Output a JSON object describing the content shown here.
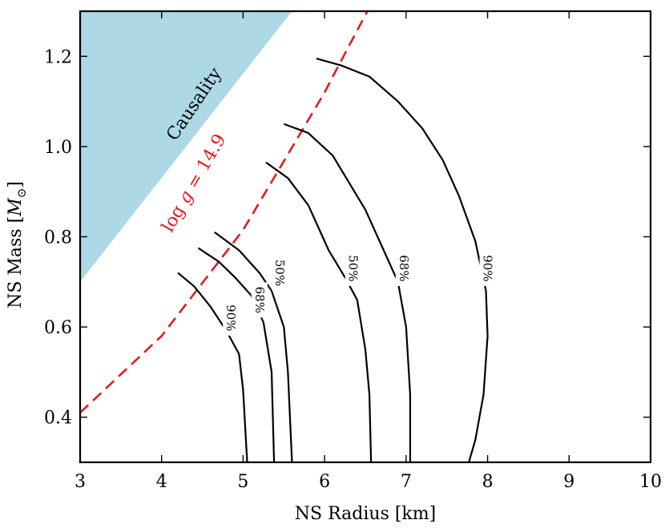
{
  "chart_data": {
    "type": "line",
    "xlabel": "NS Radius [km]",
    "ylabel": "NS Mass [M⊙]",
    "xlim": [
      3,
      10
    ],
    "ylim": [
      0.3,
      1.3
    ],
    "xticks": [
      "3",
      "4",
      "5",
      "6",
      "7",
      "8",
      "9",
      "10"
    ],
    "yticks": [
      "0.4",
      "0.6",
      "0.8",
      "1.0",
      "1.2"
    ],
    "grid": false,
    "colors": {
      "causality_fill": "#add8e6",
      "logg_line": "#e31a1c",
      "contour": "#000000"
    },
    "regions": [
      {
        "label": "Causality",
        "points": [
          [
            3.0,
            0.7
          ],
          [
            3.0,
            1.3
          ],
          [
            5.6,
            1.3
          ]
        ]
      }
    ],
    "lines": [
      {
        "label": "log g = 14.9",
        "style": "dashed",
        "points": [
          [
            3.0,
            0.41
          ],
          [
            4.0,
            0.58
          ],
          [
            5.0,
            0.815
          ],
          [
            6.0,
            1.12
          ],
          [
            6.1,
            1.155
          ],
          [
            6.7,
            1.36
          ]
        ]
      }
    ],
    "series": [
      {
        "label": "90%",
        "label_at": [
          4.85,
          0.62
        ],
        "points": [
          [
            4.2,
            0.72
          ],
          [
            4.4,
            0.69
          ],
          [
            4.6,
            0.645
          ],
          [
            4.8,
            0.59
          ],
          [
            4.95,
            0.54
          ],
          [
            5.0,
            0.46
          ],
          [
            5.05,
            0.3
          ]
        ]
      },
      {
        "label": "68%",
        "label_at": [
          5.2,
          0.66
        ],
        "points": [
          [
            4.45,
            0.775
          ],
          [
            4.7,
            0.745
          ],
          [
            4.9,
            0.71
          ],
          [
            5.1,
            0.67
          ],
          [
            5.25,
            0.61
          ],
          [
            5.35,
            0.5
          ],
          [
            5.38,
            0.3
          ]
        ]
      },
      {
        "label": "50%",
        "label_at": [
          5.45,
          0.72
        ],
        "points": [
          [
            4.65,
            0.81
          ],
          [
            4.95,
            0.77
          ],
          [
            5.2,
            0.72
          ],
          [
            5.35,
            0.68
          ],
          [
            5.5,
            0.6
          ],
          [
            5.55,
            0.5
          ],
          [
            5.6,
            0.3
          ]
        ]
      },
      {
        "label": "50%",
        "label_at": [
          6.35,
          0.73
        ],
        "points": [
          [
            5.28,
            0.965
          ],
          [
            5.55,
            0.93
          ],
          [
            5.8,
            0.87
          ],
          [
            6.05,
            0.77
          ],
          [
            6.25,
            0.71
          ],
          [
            6.4,
            0.66
          ],
          [
            6.5,
            0.55
          ],
          [
            6.55,
            0.45
          ],
          [
            6.57,
            0.3
          ]
        ]
      },
      {
        "label": "68%",
        "label_at": [
          6.97,
          0.73
        ],
        "points": [
          [
            5.5,
            1.05
          ],
          [
            5.8,
            1.03
          ],
          [
            6.1,
            0.98
          ],
          [
            6.3,
            0.92
          ],
          [
            6.5,
            0.86
          ],
          [
            6.7,
            0.78
          ],
          [
            6.9,
            0.7
          ],
          [
            7.0,
            0.6
          ],
          [
            7.05,
            0.45
          ],
          [
            7.05,
            0.3
          ]
        ]
      },
      {
        "label": "90%",
        "label_at": [
          8.0,
          0.73
        ],
        "points": [
          [
            5.9,
            1.195
          ],
          [
            6.2,
            1.18
          ],
          [
            6.55,
            1.155
          ],
          [
            6.9,
            1.1
          ],
          [
            7.2,
            1.04
          ],
          [
            7.45,
            0.97
          ],
          [
            7.65,
            0.89
          ],
          [
            7.85,
            0.79
          ],
          [
            7.98,
            0.68
          ],
          [
            8.0,
            0.58
          ],
          [
            7.95,
            0.45
          ],
          [
            7.85,
            0.35
          ],
          [
            7.77,
            0.3
          ]
        ]
      }
    ],
    "annotations": [
      {
        "text": "Causality",
        "role": "region"
      },
      {
        "text": "log g = 14.9",
        "role": "line"
      }
    ]
  }
}
